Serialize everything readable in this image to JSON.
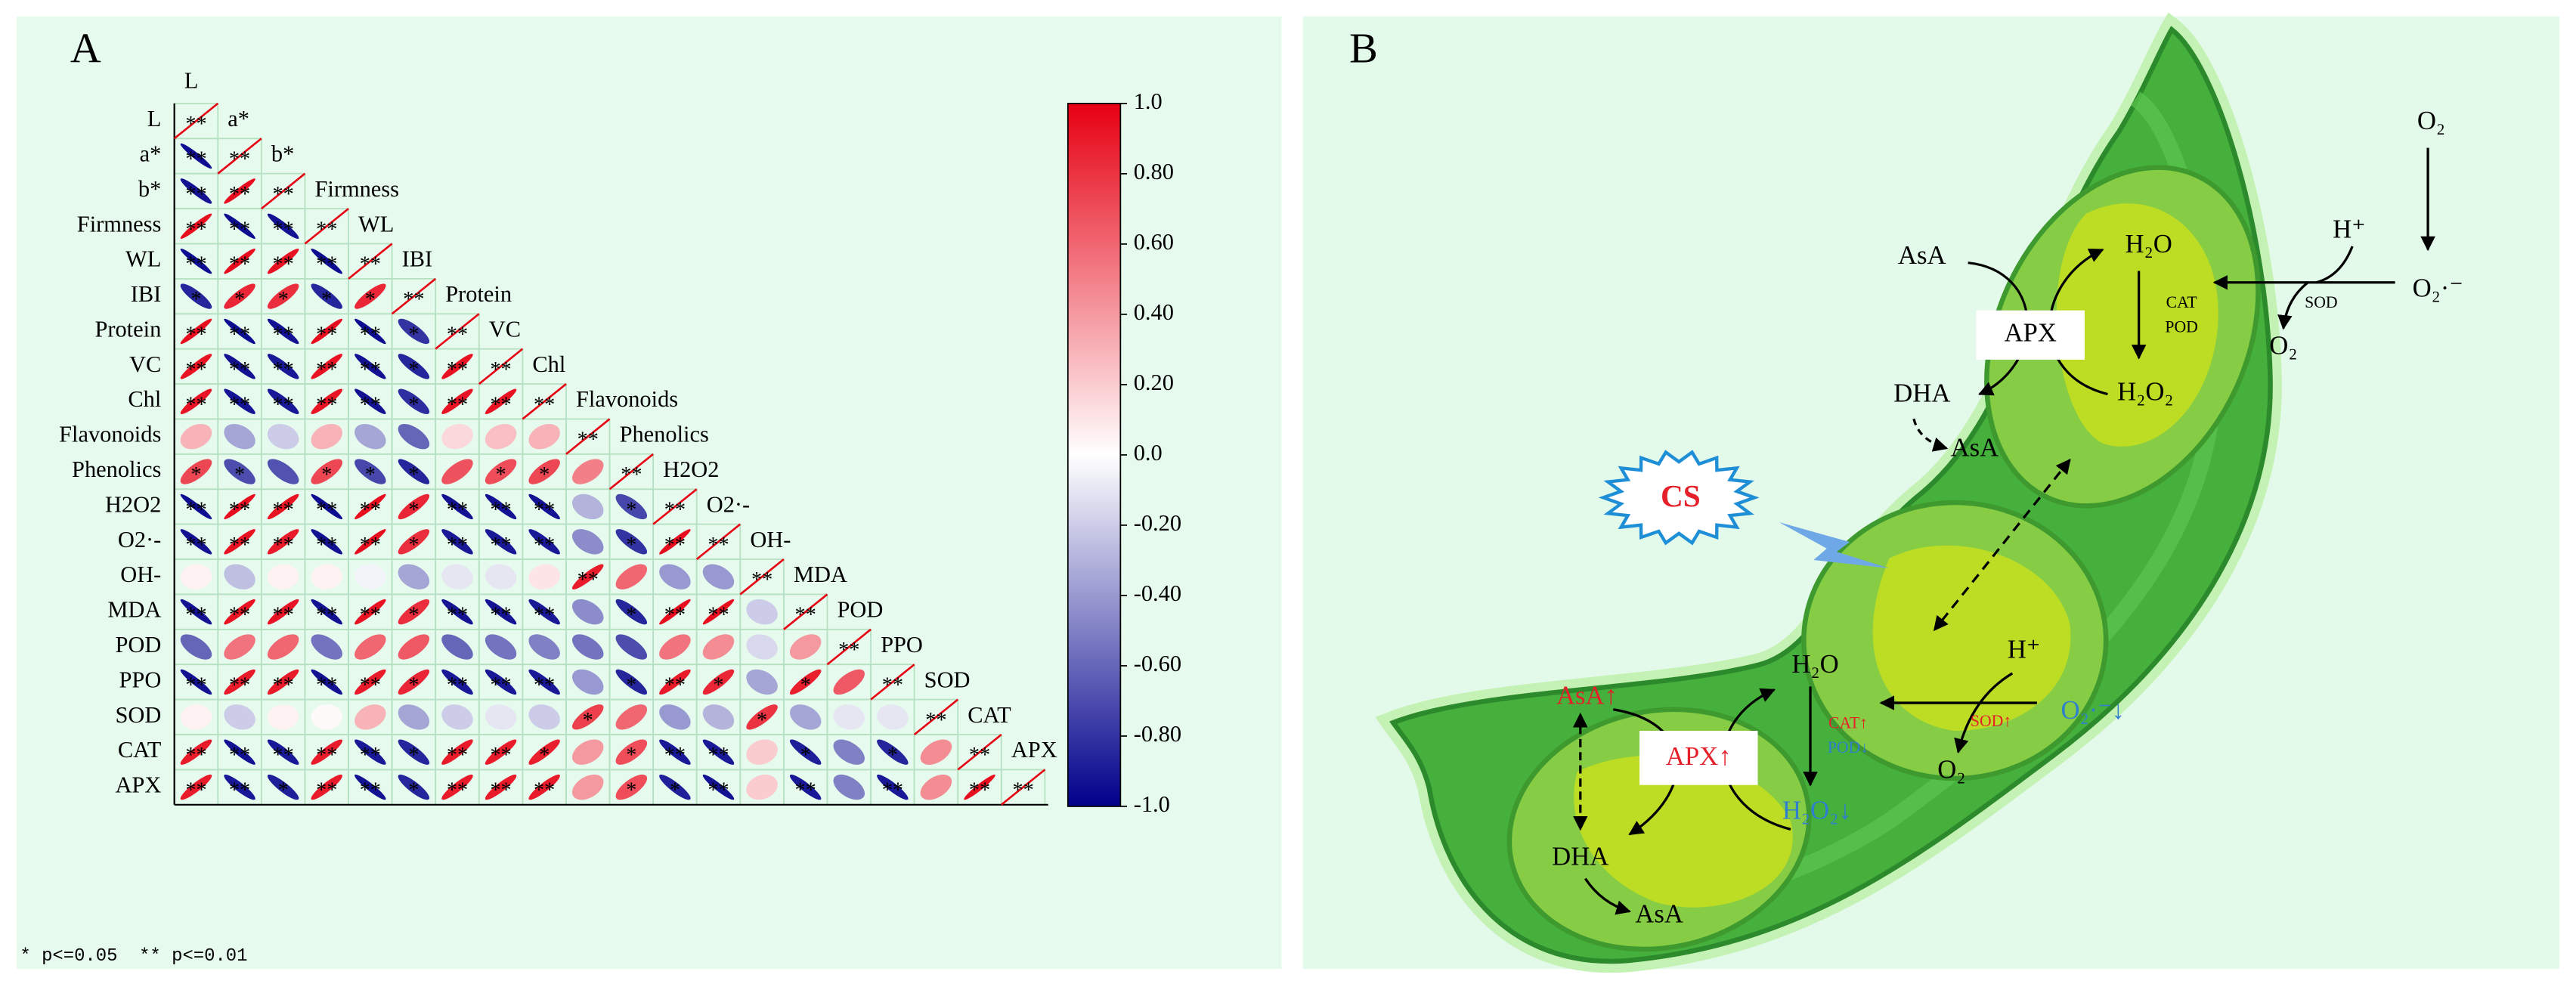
{
  "chart_data": {
    "type": "correlation",
    "panel_label": "A",
    "variables": [
      "L",
      "a*",
      "b*",
      "Firmness",
      "WL",
      "IBI",
      "Protein",
      "VC",
      "Chl",
      "Flavonoids",
      "Phenolics",
      "H2O2",
      "O2·-",
      "OH-",
      "MDA",
      "POD",
      "PPO",
      "SOD",
      "CAT",
      "APX"
    ],
    "matrix": [
      [
        1
      ],
      [
        -0.95,
        1
      ],
      [
        -0.93,
        0.95,
        1
      ],
      [
        0.95,
        -0.95,
        -0.93,
        1
      ],
      [
        -0.95,
        0.95,
        0.93,
        -0.95,
        1
      ],
      [
        -0.85,
        0.85,
        0.82,
        -0.85,
        0.85,
        1
      ],
      [
        0.95,
        -0.95,
        -0.93,
        0.95,
        -0.95,
        -0.8,
        1
      ],
      [
        0.93,
        -0.93,
        -0.9,
        0.93,
        -0.93,
        -0.85,
        0.93,
        1
      ],
      [
        0.92,
        -0.92,
        -0.9,
        0.92,
        -0.93,
        -0.82,
        0.92,
        0.93,
        1
      ],
      [
        0.3,
        -0.35,
        -0.2,
        0.3,
        -0.35,
        -0.6,
        0.15,
        0.25,
        0.3,
        1
      ],
      [
        0.72,
        -0.7,
        -0.68,
        0.72,
        -0.72,
        -0.85,
        0.68,
        0.7,
        0.72,
        0.5,
        1
      ],
      [
        -0.95,
        0.95,
        0.93,
        -0.95,
        0.95,
        0.85,
        -0.93,
        -0.93,
        -0.93,
        -0.3,
        -0.72,
        1
      ],
      [
        -0.93,
        0.93,
        0.9,
        -0.93,
        0.95,
        0.82,
        -0.9,
        -0.9,
        -0.9,
        -0.45,
        -0.8,
        0.95,
        1
      ],
      [
        0.05,
        -0.25,
        0.05,
        0.05,
        -0.05,
        -0.35,
        -0.1,
        -0.1,
        0.1,
        0.9,
        0.6,
        -0.4,
        -0.4,
        1
      ],
      [
        -0.93,
        0.93,
        0.92,
        -0.93,
        0.93,
        0.82,
        -0.92,
        -0.92,
        -0.9,
        -0.45,
        -0.85,
        0.95,
        0.95,
        -0.2,
        1
      ],
      [
        -0.6,
        0.55,
        0.6,
        -0.55,
        0.6,
        0.65,
        -0.6,
        -0.55,
        -0.5,
        -0.55,
        -0.7,
        0.55,
        0.45,
        -0.15,
        0.4,
        1
      ],
      [
        -0.93,
        0.9,
        0.9,
        -0.93,
        0.9,
        0.85,
        -0.9,
        -0.9,
        -0.9,
        -0.4,
        -0.85,
        0.9,
        0.85,
        -0.35,
        0.88,
        0.65,
        1
      ],
      [
        0.05,
        -0.2,
        0.05,
        0.02,
        0.3,
        -0.35,
        -0.2,
        -0.1,
        -0.2,
        0.75,
        0.6,
        -0.4,
        -0.3,
        0.8,
        -0.35,
        -0.1,
        -0.1,
        1
      ],
      [
        0.9,
        -0.93,
        -0.9,
        0.9,
        -0.9,
        -0.85,
        0.9,
        0.9,
        0.88,
        0.4,
        0.7,
        -0.9,
        -0.9,
        0.2,
        -0.88,
        -0.5,
        -0.85,
        0.45,
        1
      ],
      [
        0.9,
        -0.9,
        -0.88,
        0.9,
        -0.93,
        -0.85,
        0.9,
        0.9,
        0.9,
        0.4,
        0.7,
        -0.88,
        -0.93,
        0.2,
        -0.9,
        -0.5,
        -0.9,
        0.45,
        0.95,
        1
      ]
    ],
    "significance": [
      [
        "**"
      ],
      [
        "**",
        "**"
      ],
      [
        "**",
        "**",
        "**"
      ],
      [
        "**",
        "**",
        "**",
        "**"
      ],
      [
        "**",
        "**",
        "**",
        "**",
        "**"
      ],
      [
        "*",
        "*",
        "*",
        "*",
        "*",
        "**"
      ],
      [
        "**",
        "**",
        "**",
        "**",
        "**",
        "*",
        "**"
      ],
      [
        "**",
        "**",
        "**",
        "**",
        "**",
        "*",
        "**",
        "**"
      ],
      [
        "**",
        "**",
        "**",
        "**",
        "**",
        "*",
        "**",
        "**",
        "**"
      ],
      [
        null,
        null,
        null,
        null,
        null,
        null,
        null,
        null,
        null,
        "**"
      ],
      [
        "*",
        "*",
        null,
        "*",
        "*",
        "*",
        null,
        "*",
        "*",
        null,
        "**"
      ],
      [
        "**",
        "**",
        "**",
        "**",
        "**",
        "*",
        "**",
        "**",
        "**",
        null,
        "*",
        "**"
      ],
      [
        "**",
        "**",
        "**",
        "**",
        "**",
        "*",
        "**",
        "**",
        "**",
        null,
        "*",
        "**",
        "**"
      ],
      [
        null,
        null,
        null,
        null,
        null,
        null,
        null,
        null,
        null,
        "**",
        null,
        null,
        null,
        "**"
      ],
      [
        "**",
        "**",
        "**",
        "**",
        "**",
        "*",
        "**",
        "**",
        "**",
        null,
        "*",
        "**",
        "**",
        null,
        "**"
      ],
      [
        null,
        null,
        null,
        null,
        null,
        null,
        null,
        null,
        null,
        null,
        null,
        null,
        null,
        null,
        null,
        "**"
      ],
      [
        "**",
        "**",
        "**",
        "**",
        "**",
        "*",
        "**",
        "**",
        "**",
        null,
        "*",
        "**",
        "*",
        null,
        "*",
        null,
        "**"
      ],
      [
        null,
        null,
        null,
        null,
        null,
        null,
        null,
        null,
        null,
        "*",
        null,
        null,
        null,
        "*",
        null,
        null,
        null,
        "**"
      ],
      [
        "**",
        "**",
        "**",
        "**",
        "**",
        "*",
        "**",
        "**",
        "*",
        null,
        "*",
        "**",
        "**",
        null,
        "*",
        null,
        "*",
        null,
        "**"
      ],
      [
        "**",
        "**",
        "*",
        "**",
        "**",
        "*",
        "**",
        "**",
        "**",
        null,
        "*",
        "*",
        "**",
        null,
        "**",
        null,
        "**",
        null,
        "**",
        "**"
      ]
    ],
    "colorbar": {
      "lim": [
        -1,
        1
      ],
      "colors": [
        "#00008b",
        "#ffffff",
        "#e60012"
      ],
      "ticks": [
        {
          "value": 1,
          "label": "1.0"
        },
        {
          "value": 0.8,
          "label": "0.80"
        },
        {
          "value": 0.6,
          "label": "0.60"
        },
        {
          "value": 0.4,
          "label": "0.40"
        },
        {
          "value": 0.2,
          "label": "0.20"
        },
        {
          "value": 0,
          "label": "0.0"
        },
        {
          "value": -0.2,
          "label": "-0.20"
        },
        {
          "value": -0.4,
          "label": "-0.40"
        },
        {
          "value": -0.6,
          "label": "-0.60"
        },
        {
          "value": -0.8,
          "label": "-0.80"
        },
        {
          "value": -1,
          "label": "-1.0"
        }
      ]
    },
    "note": "* p<=0.05  ** p<=0.01"
  },
  "diagram": {
    "panel_label": "B",
    "labels": [
      "O₂",
      "O₂·⁻",
      "H⁺",
      "SOD",
      "AsA",
      "H₂O",
      "CAT",
      "POD",
      "APX",
      "DHA",
      "H₂O₂",
      "O₂",
      "AsA",
      "CS",
      "H₂O",
      "H⁺",
      "CAT↑",
      "SOD↑",
      "POD↓",
      "O₂·⁻↓",
      "O₂",
      "AsA↑",
      "APX↑",
      "H₂O₂↓",
      "DHA",
      "AsA"
    ]
  }
}
